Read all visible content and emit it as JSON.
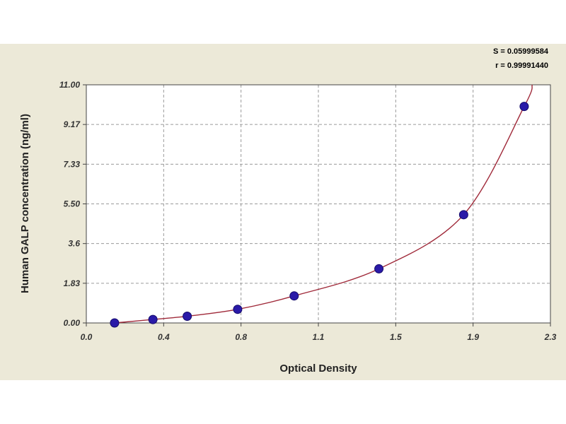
{
  "chart_data": {
    "type": "scatter",
    "title": "",
    "xlabel": "Optical Density",
    "ylabel": "Human GALP concentration (ng/ml)",
    "xlim": [
      0.0,
      2.3
    ],
    "ylim": [
      0.0,
      11.0
    ],
    "x_tick_labels": [
      "0.0",
      "0.4",
      "0.8",
      "1.1",
      "1.5",
      "1.9",
      "2.3"
    ],
    "y_tick_labels": [
      "0.00",
      "1.83",
      "3.6",
      "5.50",
      "7.33",
      "9.17",
      "11.00"
    ],
    "grid": true,
    "series": [
      {
        "x": [
          0.14,
          0.33,
          0.5,
          0.75,
          1.03,
          1.45,
          1.87,
          2.17
        ],
        "y": [
          0.0,
          0.16,
          0.31,
          0.63,
          1.25,
          2.5,
          5.0,
          10.0
        ]
      }
    ],
    "fit_curve": {
      "x": [
        0.14,
        0.33,
        0.5,
        0.75,
        1.03,
        1.45,
        1.87,
        2.17,
        2.21
      ],
      "y": [
        0.0,
        0.16,
        0.31,
        0.63,
        1.25,
        2.5,
        5.0,
        10.0,
        11.0
      ]
    },
    "annotations": [
      "S = 0.05999584",
      "r = 0.99991440"
    ],
    "colors": {
      "point_fill": "#2a1aa8",
      "point_stroke": "#140a6a",
      "curve": "#a02a3a",
      "grid": "#9a9a9a",
      "frame_bg": "#ece9d8",
      "plot_bg": "#ffffff"
    }
  }
}
